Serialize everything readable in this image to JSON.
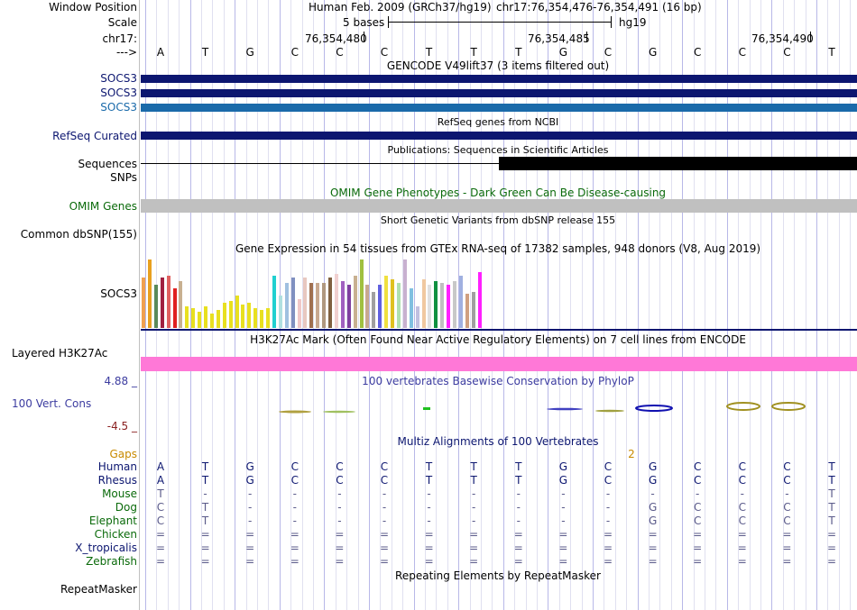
{
  "colors": {
    "navy": "#0c1670",
    "blue": "#1a6aaa",
    "pink": "#ff78d7",
    "gray": "#c0c0c0",
    "darkgreen": "#0a6a0a",
    "gaps": "#c88a00",
    "cons": "#3c3ca0"
  },
  "header": {
    "window_position_label": "Window Position",
    "scale_label": "Scale",
    "chrom_label": "chr17:",
    "arrow_label": "--->",
    "assembly": "Human Feb. 2009 (GRCh37/hg19)",
    "position": "chr17:76,354,476-76,354,491 (16 bp)",
    "scale_text": "5 bases",
    "scale_db": "hg19",
    "coords": [
      "76,354,480",
      "76,354,485",
      "76,354,490"
    ]
  },
  "sequence": [
    "A",
    "T",
    "G",
    "C",
    "C",
    "C",
    "T",
    "T",
    "T",
    "G",
    "C",
    "G",
    "C",
    "C",
    "C",
    "T"
  ],
  "tracks": {
    "gencode": {
      "title": "GENCODE V49lift37 (3 items filtered out)",
      "items": [
        "SOCS3",
        "SOCS3",
        "SOCS3"
      ]
    },
    "refseq": {
      "title": "RefSeq genes from NCBI",
      "label": "RefSeq Curated"
    },
    "publications": {
      "title": "Publications: Sequences in Scientific Articles",
      "label": "Sequences"
    },
    "snps": {
      "label": "SNPs"
    },
    "omim": {
      "title": "OMIM Gene Phenotypes - Dark Green Can Be Disease-causing",
      "label": "OMIM Genes"
    },
    "dbsnp": {
      "title": "Short Genetic Variants from dbSNP release 155",
      "label": "Common dbSNP(155)"
    },
    "gtex": {
      "title": "Gene Expression in 54 tissues from GTEx RNA-seq of 17382 samples, 948 donors (V8, Aug 2019)",
      "label": "SOCS3",
      "levels": [
        0.7,
        0.95,
        0.6,
        0.7,
        0.72,
        0.55,
        0.65,
        0.3,
        0.28,
        0.22,
        0.3,
        0.2,
        0.25,
        0.35,
        0.38,
        0.45,
        0.32,
        0.35,
        0.28,
        0.25,
        0.28,
        0.72,
        0.45,
        0.62,
        0.7,
        0.4,
        0.7,
        0.62,
        0.62,
        0.62,
        0.7,
        0.75,
        0.65,
        0.6,
        0.72,
        0.95,
        0.6,
        0.5,
        0.6,
        0.72,
        0.68,
        0.62,
        0.95,
        0.55,
        0.3,
        0.68,
        0.6,
        0.65,
        0.62,
        0.6,
        0.65,
        0.72,
        0.48,
        0.5,
        0.78
      ],
      "palette": [
        "#f0a050",
        "#e8a020",
        "#5a8a5a",
        "#a02040",
        "#e06060",
        "#e02020",
        "#c8b090",
        "#e8e020",
        "#e8e020",
        "#e8e020",
        "#e8e020",
        "#e8e020",
        "#e8e020",
        "#e8e020",
        "#e8e020",
        "#e8e020",
        "#e8e020",
        "#e8e020",
        "#e8e020",
        "#e8e020",
        "#e8e020",
        "#20d0d0",
        "#b0e0e0",
        "#a0c0e0",
        "#8090c0",
        "#f0c8c8",
        "#e8c8c0",
        "#a07050",
        "#c8a890",
        "#b09880",
        "#806040",
        "#f0d0d0",
        "#a060c0",
        "#8040a0",
        "#c8b090",
        "#a0c040",
        "#c8a890",
        "#a0a0a0",
        "#6060e0",
        "#f0e040",
        "#e0c020",
        "#b0e0b0",
        "#c8b0d0",
        "#80c0e0",
        "#c0c0e0",
        "#f0c8a0",
        "#e0e0e0",
        "#109040",
        "#c0c0c0",
        "#ff20ff",
        "#c8c8c8",
        "#a0b0e0",
        "#d0a080",
        "#a0a0a0",
        "#ff20ff"
      ]
    },
    "h3k27ac": {
      "title": "H3K27Ac Mark (Often Found Near Active Regulatory Elements) on 7 cell lines from ENCODE",
      "label": "Layered H3K27Ac"
    },
    "phylop": {
      "title": "100 vertebrates Basewise Conservation by PhyloP",
      "label": "100 Vert. Cons",
      "max": "4.88 _",
      "min": "-4.5 _"
    },
    "multiz": {
      "title": "Multiz Alignments of 100 Vertebrates",
      "gaps_label": "Gaps",
      "gaps_value": "2",
      "species": [
        {
          "name": "Human",
          "seq": [
            "A",
            "T",
            "G",
            "C",
            "C",
            "C",
            "T",
            "T",
            "T",
            "G",
            "C",
            "G",
            "C",
            "C",
            "C",
            "T"
          ]
        },
        {
          "name": "Rhesus",
          "seq": [
            "A",
            "T",
            "G",
            "C",
            "C",
            "C",
            "T",
            "T",
            "T",
            "G",
            "C",
            "G",
            "C",
            "C",
            "C",
            "T"
          ]
        },
        {
          "name": "Mouse",
          "seq": [
            "T",
            "-",
            "-",
            "-",
            "-",
            "-",
            "-",
            "-",
            "-",
            "-",
            "-",
            "-",
            "-",
            "-",
            "-",
            "T"
          ]
        },
        {
          "name": "Dog",
          "seq": [
            "C",
            "T",
            "-",
            "-",
            "-",
            "-",
            "-",
            "-",
            "-",
            "-",
            "-",
            "G",
            "C",
            "C",
            "C",
            "T"
          ]
        },
        {
          "name": "Elephant",
          "seq": [
            "C",
            "T",
            "-",
            "-",
            "-",
            "-",
            "-",
            "-",
            "-",
            "-",
            "-",
            "G",
            "C",
            "C",
            "C",
            "T"
          ]
        },
        {
          "name": "Chicken",
          "seq": [
            "=",
            "=",
            "=",
            "=",
            "=",
            "=",
            "=",
            "=",
            "=",
            "=",
            "=",
            "=",
            "=",
            "=",
            "=",
            "="
          ]
        },
        {
          "name": "X_tropicalis",
          "seq": [
            "=",
            "=",
            "=",
            "=",
            "=",
            "=",
            "=",
            "=",
            "=",
            "=",
            "=",
            "=",
            "=",
            "=",
            "=",
            "="
          ]
        },
        {
          "name": "Zebrafish",
          "seq": [
            "=",
            "=",
            "=",
            "=",
            "=",
            "=",
            "=",
            "=",
            "=",
            "=",
            "=",
            "=",
            "=",
            "=",
            "=",
            "="
          ]
        }
      ]
    },
    "repeatmasker": {
      "title": "Repeating Elements by RepeatMasker",
      "label": "RepeatMasker"
    }
  }
}
